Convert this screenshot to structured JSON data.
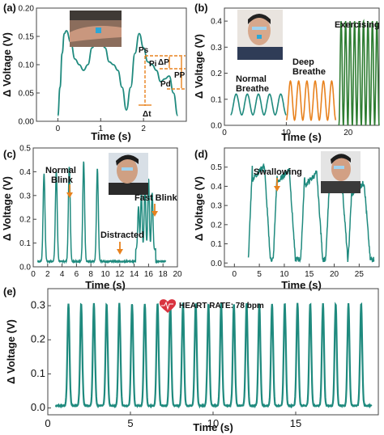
{
  "colors": {
    "teal": "#1f8a7e",
    "orange": "#e8821e",
    "green": "#2e7d32",
    "heart": "#d9333f"
  },
  "chart_data": [
    {
      "panel": "(a)",
      "type": "line",
      "xlabel": "Time (s)",
      "ylabel": "Δ Voltage (V)",
      "xlim": [
        -0.5,
        3.0
      ],
      "ylim": [
        0,
        0.2
      ],
      "xticks": [
        "0",
        "1",
        "2"
      ],
      "yticks": [
        "0.00",
        "0.05",
        "0.10",
        "0.15",
        "0.20"
      ],
      "series": [
        {
          "color": "teal",
          "x": [
            0.0,
            0.05,
            0.1,
            0.15,
            0.2,
            0.3,
            0.4,
            0.5,
            0.6,
            0.7,
            0.8,
            0.9,
            1.0,
            1.1,
            1.2,
            1.3,
            1.4,
            1.5,
            1.6,
            1.7,
            1.8,
            1.9,
            2.0,
            2.1,
            2.2,
            2.3,
            2.4,
            2.5,
            2.6,
            2.7,
            2.8
          ],
          "y": [
            0.01,
            0.06,
            0.12,
            0.155,
            0.16,
            0.14,
            0.11,
            0.1,
            0.09,
            0.1,
            0.13,
            0.145,
            0.15,
            0.13,
            0.105,
            0.1,
            0.09,
            0.06,
            0.02,
            0.06,
            0.12,
            0.155,
            0.13,
            0.105,
            0.1,
            0.09,
            0.07,
            0.075,
            0.08,
            0.05,
            0.01
          ]
        }
      ],
      "annotations": [
        "Ps",
        "Pi",
        "Pd",
        "ΔP",
        "PP",
        "Δt"
      ]
    },
    {
      "panel": "(b)",
      "type": "line",
      "xlabel": "Time (s)",
      "ylabel": "Δ Voltage (V)",
      "xlim": [
        0,
        25
      ],
      "ylim": [
        0,
        0.45
      ],
      "xticks": [
        "0",
        "10",
        "20"
      ],
      "yticks": [
        "0.0",
        "0.1",
        "0.2",
        "0.3",
        "0.4"
      ],
      "series": [
        {
          "name": "Normal Breathe",
          "color": "teal",
          "x_range": [
            1,
            10
          ],
          "cycles": 5,
          "ymin": 0.04,
          "ymax": 0.12
        },
        {
          "name": "Deep Breathe",
          "color": "orange",
          "x_range": [
            10,
            18
          ],
          "cycles": 6,
          "ymin": 0.02,
          "ymax": 0.17
        },
        {
          "name": "Exercising",
          "color": "green",
          "x_range": [
            18.5,
            25
          ],
          "cycles": 9,
          "ymin": 0.0,
          "ymax": 0.4
        }
      ]
    },
    {
      "panel": "(c)",
      "type": "line",
      "xlabel": "Time (s)",
      "ylabel": "Δ Voltage (V)",
      "xlim": [
        0,
        20
      ],
      "ylim": [
        0,
        0.5
      ],
      "xticks": [
        "0",
        "2",
        "4",
        "6",
        "8",
        "10",
        "12",
        "14",
        "16",
        "18",
        "20"
      ],
      "yticks": [
        "0.0",
        "0.1",
        "0.2",
        "0.3",
        "0.4",
        "0.5"
      ],
      "series": [
        {
          "color": "teal",
          "spikes": [
            1.5,
            3.2,
            5.0,
            7.0,
            8.9
          ],
          "spike_heights": [
            0.37,
            0.38,
            0.4,
            0.42,
            0.39
          ],
          "fast_blink": [
            14.6,
            15.0,
            15.5,
            16.0,
            16.5
          ],
          "fast_blink_heights": [
            0.18,
            0.24,
            0.27,
            0.3,
            0.24
          ]
        }
      ],
      "annotations": [
        "Normal Blink",
        "Distracted",
        "Fast Blink"
      ]
    },
    {
      "panel": "(d)",
      "type": "line",
      "xlabel": "Time (s)",
      "ylabel": "Δ Voltage (V)",
      "xlim": [
        -2,
        29
      ],
      "ylim": [
        -0.02,
        0.6
      ],
      "xticks": [
        "0",
        "5",
        "10",
        "15",
        "20",
        "25"
      ],
      "yticks": [
        "0.0",
        "0.1",
        "0.2",
        "0.3",
        "0.4",
        "0.5"
      ],
      "series": [
        {
          "color": "teal",
          "peaks": [
            6.0,
            11.0,
            16.5,
            21.5,
            26.0
          ],
          "peak_heights": [
            0.49,
            0.47,
            0.45,
            0.42,
            0.4
          ]
        }
      ],
      "annotations": [
        "Swallowing"
      ]
    },
    {
      "panel": "(e)",
      "type": "line",
      "xlabel": "Time (s)",
      "ylabel": "Δ Voltage (V)",
      "xlim": [
        0,
        20
      ],
      "ylim": [
        -0.02,
        0.35
      ],
      "xticks": [
        "0",
        "5",
        "10",
        "15"
      ],
      "yticks": [
        "0.0",
        "0.1",
        "0.2",
        "0.3"
      ],
      "series": [
        {
          "color": "teal",
          "first_peak": 1.25,
          "period": 0.77,
          "count": 24,
          "peak": 0.305,
          "base": 0.005
        }
      ],
      "annotations": [
        "HEART RATE: 78 bpm"
      ]
    }
  ],
  "labels": {
    "a": {
      "panel": "(a)",
      "xlabel": "Time (s)",
      "ylabel": "Δ Voltage (V)",
      "ps": "Ps",
      "pi": "Pi",
      "pd": "Pd",
      "dp": "ΔP",
      "pp": "PP",
      "dt": "Δt"
    },
    "b": {
      "panel": "(b)",
      "xlabel": "Time (s)",
      "ylabel": "Δ Voltage (V)",
      "normal1": "Normal",
      "normal2": "Breathe",
      "deep1": "Deep",
      "deep2": "Breathe",
      "exercising": "Exercising"
    },
    "c": {
      "panel": "(c)",
      "xlabel": "Time (s)",
      "ylabel": "Δ Voltage (V)",
      "blink1": "Normal",
      "blink2": "Blink",
      "distracted": "Distracted",
      "fast": "Fast Blink"
    },
    "d": {
      "panel": "(d)",
      "xlabel": "Time (s)",
      "ylabel": "Δ Voltage (V)",
      "swallowing": "Swallowing"
    },
    "e": {
      "panel": "(e)",
      "xlabel": "Time (s)",
      "ylabel": "Δ Voltage (V)",
      "heart_rate": "HEART RATE: 78 bpm"
    }
  },
  "photos": [
    "wrist-photo",
    "face-front-photo",
    "face-side-photo-c",
    "face-side-photo-d"
  ]
}
